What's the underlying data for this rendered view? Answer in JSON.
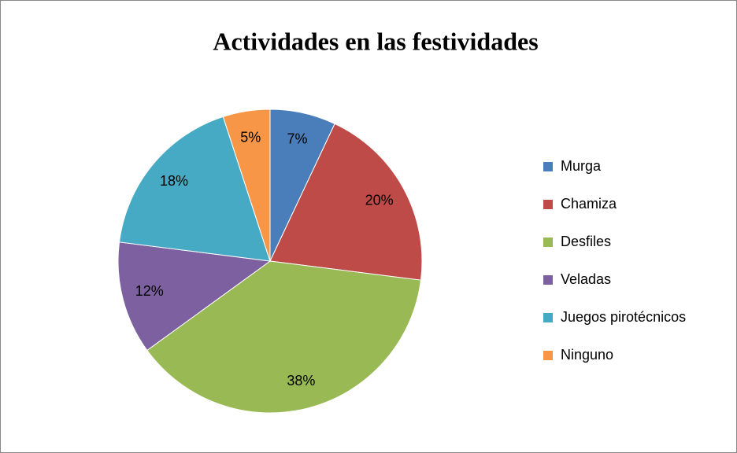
{
  "chart_data": {
    "type": "pie",
    "title": "Actividades en las festividades",
    "categories": [
      "Murga",
      "Chamiza",
      "Desfiles",
      "Veladas",
      "Juegos pirotécnicos",
      "Ninguno"
    ],
    "values": [
      7,
      20,
      38,
      12,
      18,
      5
    ],
    "value_labels": [
      "7%",
      "20%",
      "38%",
      "12%",
      "18%",
      "5%"
    ],
    "colors": [
      "#4a7ebb",
      "#be4b48",
      "#98b954",
      "#7d60a0",
      "#46aac5",
      "#f79646"
    ],
    "legend": "right"
  }
}
